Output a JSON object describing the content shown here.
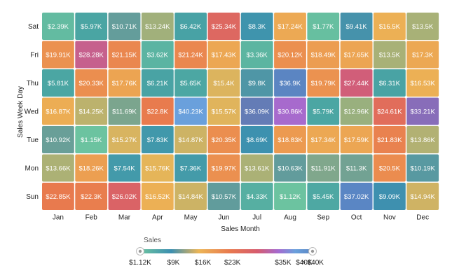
{
  "chart_data": {
    "type": "heatmap",
    "xlabel": "Sales Month",
    "ylabel": "Sales Week Day",
    "x_categories": [
      "Jan",
      "Feb",
      "Mar",
      "Apr",
      "May",
      "Jun",
      "Jul",
      "Aug",
      "Sep",
      "Oct",
      "Nov",
      "Dec"
    ],
    "y_categories": [
      "Sat",
      "Fri",
      "Thu",
      "Wed",
      "Tue",
      "Mon",
      "Sun"
    ],
    "values": [
      [
        2.39,
        5.97,
        10.71,
        13.24,
        6.42,
        25.34,
        8.3,
        17.24,
        1.77,
        9.41,
        16.5,
        13.5
      ],
      [
        19.91,
        28.28,
        21.15,
        3.62,
        21.24,
        17.43,
        3.36,
        20.12,
        18.49,
        17.65,
        13.5,
        17.3
      ],
      [
        5.81,
        20.33,
        17.76,
        6.21,
        5.65,
        15.4,
        9.8,
        36.9,
        19.79,
        27.44,
        6.31,
        16.53
      ],
      [
        16.87,
        14.25,
        11.69,
        22.8,
        40.23,
        15.57,
        36.09,
        30.86,
        5.79,
        12.96,
        24.61,
        33.21
      ],
      [
        10.92,
        1.15,
        15.27,
        7.83,
        14.87,
        20.35,
        8.69,
        18.83,
        17.34,
        17.59,
        21.83,
        13.86
      ],
      [
        13.66,
        18.26,
        7.54,
        15.76,
        7.36,
        19.97,
        13.61,
        10.63,
        11.91,
        11.3,
        20.5,
        10.19
      ],
      [
        22.85,
        22.3,
        26.02,
        16.52,
        14.84,
        10.57,
        4.33,
        1.12,
        5.45,
        37.02,
        9.09,
        14.94
      ]
    ],
    "labels": [
      [
        "$2.39K",
        "$5.97K",
        "$10.71K",
        "$13.24K",
        "$6.42K",
        "$25.34K",
        "$8.3K",
        "$17.24K",
        "$1.77K",
        "$9.41K",
        "$16.5K",
        "$13.5K"
      ],
      [
        "$19.91K",
        "$28.28K",
        "$21.15K",
        "$3.62K",
        "$21.24K",
        "$17.43K",
        "$3.36K",
        "$20.12K",
        "$18.49K",
        "$17.65K",
        "$13.5K",
        "$17.3K"
      ],
      [
        "$5.81K",
        "$20.33K",
        "$17.76K",
        "$6.21K",
        "$5.65K",
        "$15.4K",
        "$9.8K",
        "$36.9K",
        "$19.79K",
        "$27.44K",
        "$6.31K",
        "$16.53K"
      ],
      [
        "$16.87K",
        "$14.25K",
        "$11.69K",
        "$22.8K",
        "$40.23K",
        "$15.57K",
        "$36.09K",
        "$30.86K",
        "$5.79K",
        "$12.96K",
        "$24.61K",
        "$33.21K"
      ],
      [
        "$10.92K",
        "$1.15K",
        "$15.27K",
        "$7.83K",
        "$14.87K",
        "$20.35K",
        "$8.69K",
        "$18.83K",
        "$17.34K",
        "$17.59K",
        "$21.83K",
        "$13.86K"
      ],
      [
        "$13.66K",
        "$18.26K",
        "$7.54K",
        "$15.76K",
        "$7.36K",
        "$19.97K",
        "$13.61K",
        "$10.63K",
        "$11.91K",
        "$11.3K",
        "$20.5K",
        "$10.19K"
      ],
      [
        "$22.85K",
        "$22.3K",
        "$26.02K",
        "$16.52K",
        "$14.84K",
        "$10.57K",
        "$4.33K",
        "$1.12K",
        "$5.45K",
        "$37.02K",
        "$9.09K",
        "$14.94K"
      ]
    ],
    "unit": "$K",
    "legend": {
      "title": "Sales",
      "tick_labels": [
        "$1.12K",
        "$9K",
        "$16K",
        "$23K",
        "$35K",
        "$40K",
        "> $40K"
      ],
      "tick_values": [
        1.12,
        9,
        16,
        23,
        35,
        40,
        42
      ],
      "placement": "bottom"
    },
    "colorscale": [
      [
        1.12,
        "#6cc3a0"
      ],
      [
        6,
        "#4aa5a3"
      ],
      [
        9,
        "#3c8fb0"
      ],
      [
        13,
        "#9ab07e"
      ],
      [
        16,
        "#ecb556"
      ],
      [
        19,
        "#ec9850"
      ],
      [
        23,
        "#e8794e"
      ],
      [
        27,
        "#d65c6e"
      ],
      [
        31,
        "#a56ad0"
      ],
      [
        35,
        "#7070a6"
      ],
      [
        37,
        "#5a86c4"
      ],
      [
        40,
        "#6aa0dc"
      ]
    ]
  }
}
